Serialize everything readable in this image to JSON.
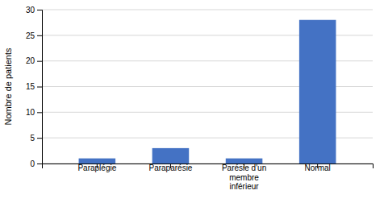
{
  "chart_data": {
    "type": "bar",
    "categories": [
      "Paraplégie",
      "Paraparésie",
      "Parésie d'un\nmembre\ninférieur",
      "Normal"
    ],
    "values": [
      1,
      3,
      1,
      28
    ],
    "color": "#4472C4",
    "ylabel": "Nombre de patients",
    "ylim": [
      0,
      30
    ],
    "yticks": [
      0,
      5,
      10,
      15,
      20,
      25,
      30
    ],
    "grid": true
  }
}
